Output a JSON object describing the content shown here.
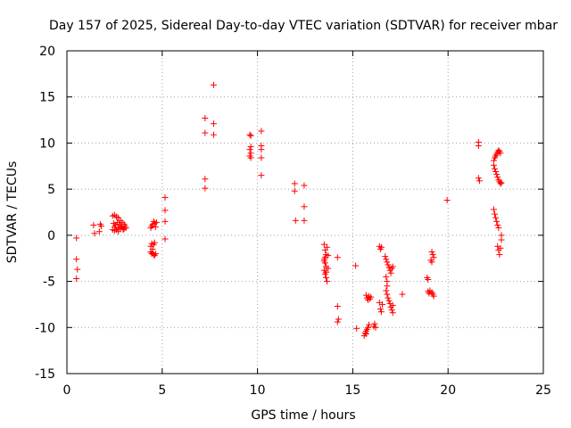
{
  "chart_data": {
    "type": "scatter",
    "title": "Day 157 of 2025, Sidereal Day-to-day VTEC variation (SDTVAR) for receiver mbar",
    "xlabel": "GPS time / hours",
    "ylabel": "SDTVAR / TECUs",
    "xlim": [
      0,
      25
    ],
    "ylim": [
      -15,
      20
    ],
    "xticks": [
      0,
      5,
      10,
      15,
      20,
      25
    ],
    "yticks": [
      -15,
      -10,
      -5,
      0,
      5,
      10,
      15,
      20
    ],
    "grid": true,
    "marker": "+",
    "color": "#ff0000",
    "series": [
      {
        "name": "SDTVAR",
        "points": [
          [
            0.5,
            -0.3
          ],
          [
            0.5,
            -2.6
          ],
          [
            0.55,
            -3.7
          ],
          [
            0.5,
            -4.7
          ],
          [
            1.4,
            1.1
          ],
          [
            1.45,
            0.2
          ],
          [
            1.7,
            0.4
          ],
          [
            1.75,
            1.2
          ],
          [
            1.8,
            1.0
          ],
          [
            2.4,
            2.1
          ],
          [
            2.5,
            2.2
          ],
          [
            2.6,
            2.0
          ],
          [
            2.7,
            1.9
          ],
          [
            2.8,
            1.6
          ],
          [
            2.9,
            1.4
          ],
          [
            3.0,
            1.2
          ],
          [
            3.05,
            1.0
          ],
          [
            2.4,
            0.6
          ],
          [
            2.5,
            0.5
          ],
          [
            2.6,
            0.6
          ],
          [
            2.7,
            0.7
          ],
          [
            2.8,
            0.8
          ],
          [
            2.9,
            0.9
          ],
          [
            3.0,
            0.7
          ],
          [
            3.1,
            0.8
          ],
          [
            2.45,
            1.3
          ],
          [
            2.55,
            1.1
          ],
          [
            2.65,
            1.4
          ],
          [
            2.75,
            1.2
          ],
          [
            2.85,
            1.0
          ],
          [
            2.95,
            0.6
          ],
          [
            2.5,
            0.9
          ],
          [
            2.7,
            0.4
          ],
          [
            4.4,
            0.8
          ],
          [
            4.45,
            1.0
          ],
          [
            4.5,
            1.2
          ],
          [
            4.55,
            1.5
          ],
          [
            4.6,
            1.3
          ],
          [
            4.65,
            0.9
          ],
          [
            4.7,
            1.4
          ],
          [
            4.4,
            -1.2
          ],
          [
            4.45,
            -0.9
          ],
          [
            4.5,
            -1.5
          ],
          [
            4.55,
            -1.0
          ],
          [
            4.6,
            -0.8
          ],
          [
            4.4,
            -1.8
          ],
          [
            4.45,
            -2.0
          ],
          [
            4.5,
            -1.9
          ],
          [
            4.55,
            -2.1
          ],
          [
            4.6,
            -2.2
          ],
          [
            4.65,
            -2.0
          ],
          [
            5.15,
            4.1
          ],
          [
            5.15,
            2.7
          ],
          [
            5.15,
            1.5
          ],
          [
            5.15,
            -0.4
          ],
          [
            7.25,
            12.7
          ],
          [
            7.25,
            11.1
          ],
          [
            7.25,
            6.1
          ],
          [
            7.25,
            5.1
          ],
          [
            7.7,
            16.3
          ],
          [
            7.7,
            12.1
          ],
          [
            7.7,
            10.9
          ],
          [
            9.6,
            10.9
          ],
          [
            9.65,
            10.8
          ],
          [
            9.65,
            9.6
          ],
          [
            9.6,
            9.3
          ],
          [
            9.65,
            8.9
          ],
          [
            9.6,
            8.6
          ],
          [
            9.65,
            8.4
          ],
          [
            10.2,
            11.3
          ],
          [
            10.2,
            9.7
          ],
          [
            10.2,
            9.3
          ],
          [
            10.2,
            8.4
          ],
          [
            10.2,
            6.5
          ],
          [
            11.95,
            5.6
          ],
          [
            11.95,
            4.8
          ],
          [
            12.0,
            1.6
          ],
          [
            12.45,
            5.4
          ],
          [
            12.45,
            3.1
          ],
          [
            12.45,
            1.6
          ],
          [
            13.5,
            -1.0
          ],
          [
            13.55,
            -1.6
          ],
          [
            13.6,
            -2.1
          ],
          [
            13.5,
            -2.6
          ],
          [
            13.55,
            -3.0
          ],
          [
            13.6,
            -3.4
          ],
          [
            13.5,
            -3.8
          ],
          [
            13.55,
            -4.2
          ],
          [
            13.6,
            -4.6
          ],
          [
            13.65,
            -5.0
          ],
          [
            13.5,
            -2.8
          ],
          [
            13.7,
            -3.6
          ],
          [
            13.65,
            -1.3
          ],
          [
            13.55,
            -2.4
          ],
          [
            13.6,
            -4.0
          ],
          [
            13.7,
            -2.2
          ],
          [
            14.2,
            -2.4
          ],
          [
            14.2,
            -7.7
          ],
          [
            14.25,
            -9.1
          ],
          [
            14.2,
            -9.4
          ],
          [
            15.15,
            -3.3
          ],
          [
            15.2,
            -10.1
          ],
          [
            15.6,
            -10.9
          ],
          [
            15.65,
            -10.6
          ],
          [
            15.7,
            -10.4
          ],
          [
            15.75,
            -10.2
          ],
          [
            15.8,
            -10.0
          ],
          [
            15.85,
            -9.7
          ],
          [
            15.7,
            -10.7
          ],
          [
            15.7,
            -6.5
          ],
          [
            15.75,
            -6.8
          ],
          [
            15.8,
            -7.0
          ],
          [
            15.85,
            -6.6
          ],
          [
            15.9,
            -6.9
          ],
          [
            15.95,
            -6.7
          ],
          [
            16.1,
            -9.9
          ],
          [
            16.15,
            -9.6
          ],
          [
            16.2,
            -10.0
          ],
          [
            16.4,
            -1.2
          ],
          [
            16.45,
            -1.5
          ],
          [
            16.5,
            -1.3
          ],
          [
            16.4,
            -7.3
          ],
          [
            16.45,
            -8.0
          ],
          [
            16.5,
            -8.3
          ],
          [
            16.55,
            -7.5
          ],
          [
            16.7,
            -2.3
          ],
          [
            16.75,
            -2.6
          ],
          [
            16.8,
            -2.9
          ],
          [
            16.85,
            -3.2
          ],
          [
            16.9,
            -3.5
          ],
          [
            16.95,
            -3.8
          ],
          [
            17.0,
            -4.1
          ],
          [
            17.05,
            -3.6
          ],
          [
            17.1,
            -3.4
          ],
          [
            16.75,
            -4.5
          ],
          [
            16.8,
            -5.0
          ],
          [
            16.8,
            -5.5
          ],
          [
            16.75,
            -6.0
          ],
          [
            16.8,
            -6.4
          ],
          [
            16.85,
            -6.8
          ],
          [
            16.9,
            -7.1
          ],
          [
            16.95,
            -7.4
          ],
          [
            17.0,
            -7.8
          ],
          [
            17.05,
            -8.1
          ],
          [
            17.1,
            -8.4
          ],
          [
            17.1,
            -7.6
          ],
          [
            17.6,
            -6.4
          ],
          [
            18.9,
            -4.6
          ],
          [
            18.95,
            -4.8
          ],
          [
            18.95,
            -6.1
          ],
          [
            19.0,
            -6.3
          ],
          [
            19.05,
            -6.0
          ],
          [
            19.15,
            -6.2
          ],
          [
            19.2,
            -6.4
          ],
          [
            19.25,
            -6.6
          ],
          [
            19.15,
            -1.8
          ],
          [
            19.2,
            -2.1
          ],
          [
            19.25,
            -2.4
          ],
          [
            19.1,
            -2.7
          ],
          [
            19.15,
            -2.9
          ],
          [
            19.95,
            3.8
          ],
          [
            21.6,
            10.1
          ],
          [
            21.6,
            9.7
          ],
          [
            21.6,
            6.2
          ],
          [
            21.65,
            5.9
          ],
          [
            22.4,
            8.1
          ],
          [
            22.45,
            8.4
          ],
          [
            22.5,
            8.6
          ],
          [
            22.55,
            8.8
          ],
          [
            22.6,
            9.0
          ],
          [
            22.65,
            9.2
          ],
          [
            22.7,
            9.1
          ],
          [
            22.75,
            8.9
          ],
          [
            22.4,
            7.6
          ],
          [
            22.45,
            7.2
          ],
          [
            22.5,
            6.9
          ],
          [
            22.55,
            6.6
          ],
          [
            22.6,
            6.3
          ],
          [
            22.65,
            6.0
          ],
          [
            22.7,
            5.8
          ],
          [
            22.75,
            5.6
          ],
          [
            22.8,
            5.7
          ],
          [
            22.4,
            2.8
          ],
          [
            22.45,
            2.3
          ],
          [
            22.5,
            1.9
          ],
          [
            22.55,
            1.5
          ],
          [
            22.6,
            1.1
          ],
          [
            22.65,
            0.8
          ],
          [
            22.6,
            -1.2
          ],
          [
            22.65,
            -1.6
          ],
          [
            22.7,
            -2.1
          ],
          [
            22.75,
            -1.4
          ],
          [
            22.8,
            0.0
          ],
          [
            22.8,
            -0.5
          ]
        ]
      }
    ]
  }
}
